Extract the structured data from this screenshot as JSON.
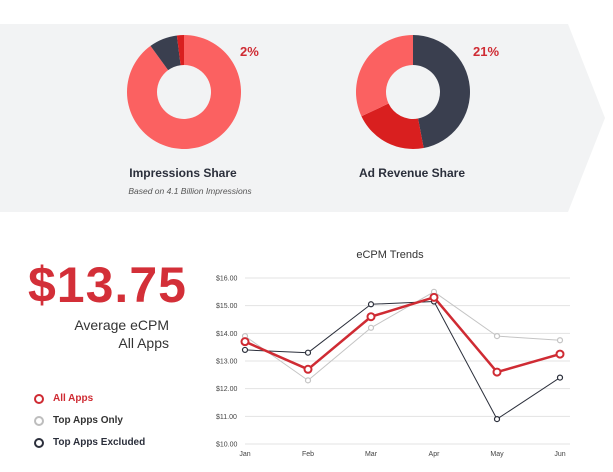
{
  "impressions": {
    "title": "Impressions Share",
    "subtitle": "Based on 4.1 Billion Impressions",
    "highlight_label": "2%",
    "slices": [
      {
        "name": "All Apps",
        "value": 90,
        "color": "#fb6161"
      },
      {
        "name": "Top Apps Excluded",
        "value": 8,
        "color": "#3a3f4f"
      },
      {
        "name": "Top Apps Only",
        "value": 2,
        "color": "#d91f1f"
      }
    ]
  },
  "revenue": {
    "title": "Ad Revenue Share",
    "highlight_label": "21%",
    "slices": [
      {
        "name": "Top Apps Excluded",
        "value": 47,
        "color": "#3a3f4f"
      },
      {
        "name": "Top Apps Only",
        "value": 21,
        "color": "#d91f1f"
      },
      {
        "name": "All Apps",
        "value": 32,
        "color": "#fb6161"
      }
    ]
  },
  "summary": {
    "value": "$13.75",
    "label_line1": "Average eCPM",
    "label_line2": "All Apps"
  },
  "legend": [
    {
      "label": "All Apps",
      "color": "#cf2b33"
    },
    {
      "label": "Top Apps Only",
      "color": "#bdbdbd"
    },
    {
      "label": "Top Apps Excluded",
      "color": "#2b2f3b"
    }
  ],
  "chart_data": {
    "type": "line",
    "title": "eCPM Trends",
    "categories": [
      "Jan",
      "Feb",
      "Mar",
      "Apr",
      "May",
      "Jun"
    ],
    "ylim": [
      10,
      16
    ],
    "yticks": [
      "$10.00",
      "$11.00",
      "$12.00",
      "$13.00",
      "$14.00",
      "$15.00",
      "$16.00"
    ],
    "grid": true,
    "series": [
      {
        "name": "Top Apps Only",
        "color": "#c4c4c4",
        "width": 1,
        "values": [
          13.9,
          12.3,
          14.2,
          15.5,
          13.9,
          13.75
        ]
      },
      {
        "name": "Top Apps Excluded",
        "color": "#2b2f3b",
        "width": 1,
        "values": [
          13.4,
          13.3,
          15.05,
          15.15,
          10.9,
          12.4
        ]
      },
      {
        "name": "All Apps",
        "color": "#cf2b33",
        "width": 2.5,
        "values": [
          13.7,
          12.7,
          14.6,
          15.3,
          12.6,
          13.25
        ]
      }
    ]
  }
}
